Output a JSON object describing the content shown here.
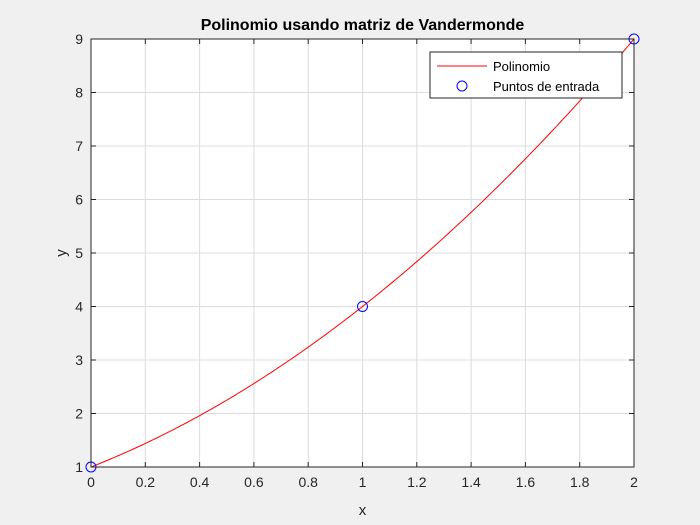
{
  "chart_data": {
    "type": "line",
    "title": "Polinomio usando matriz de Vandermonde",
    "xlabel": "x",
    "ylabel": "y",
    "xlim": [
      0,
      2
    ],
    "ylim": [
      1,
      9
    ],
    "xticks": [
      "0",
      "0.2",
      "0.4",
      "0.6",
      "0.8",
      "1",
      "1.2",
      "1.4",
      "1.6",
      "1.8",
      "2"
    ],
    "yticks": [
      "1",
      "2",
      "3",
      "4",
      "5",
      "6",
      "7",
      "8",
      "9"
    ],
    "grid": true,
    "legend_position": "top-right",
    "series": [
      {
        "name": "Polinomio",
        "style": "line",
        "color": "#ff0000",
        "polynomial_coefficients": [
          1,
          2,
          1
        ],
        "x": [
          0,
          0.25,
          0.5,
          0.75,
          1,
          1.25,
          1.5,
          1.75,
          2
        ],
        "y": [
          1,
          1.5625,
          2.25,
          3.0625,
          4,
          5.0625,
          6.25,
          7.5625,
          9
        ]
      },
      {
        "name": "Puntos de entrada",
        "style": "marker-circle",
        "color": "#0000ff",
        "x": [
          0,
          1,
          2
        ],
        "y": [
          1,
          4,
          9
        ]
      }
    ]
  }
}
